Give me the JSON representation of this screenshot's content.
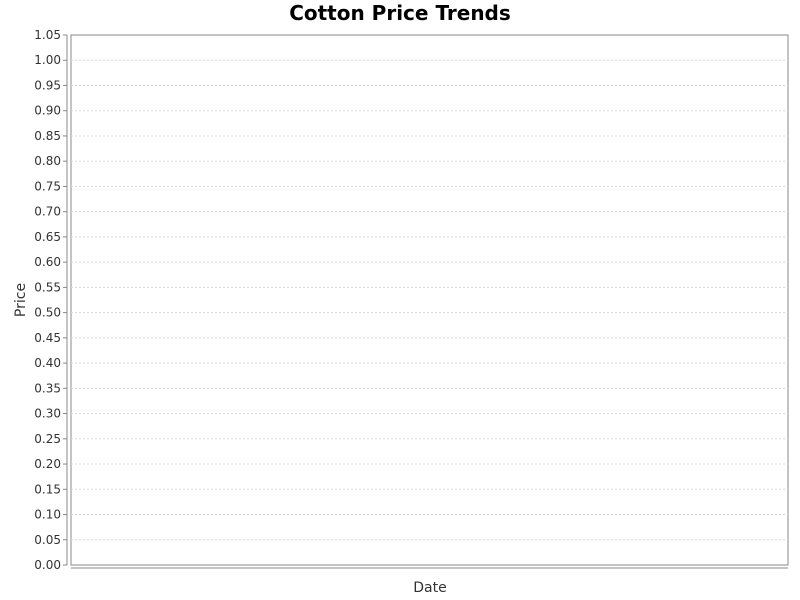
{
  "chart_data": {
    "type": "line",
    "title": "Cotton Price Trends",
    "xlabel": "Date",
    "ylabel": "Price",
    "ylim": [
      0,
      1.05
    ],
    "y_ticks": [
      "0.00",
      "0.05",
      "0.10",
      "0.15",
      "0.20",
      "0.25",
      "0.30",
      "0.35",
      "0.40",
      "0.45",
      "0.50",
      "0.55",
      "0.60",
      "0.65",
      "0.70",
      "0.75",
      "0.80",
      "0.85",
      "0.90",
      "0.95",
      "1.00",
      "1.05"
    ],
    "x": [],
    "series": [],
    "grid": true,
    "legend": "none"
  }
}
